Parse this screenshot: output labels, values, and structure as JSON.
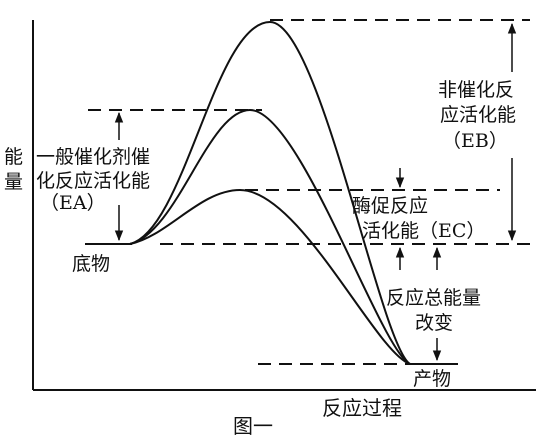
{
  "figure": {
    "caption": "图一",
    "x_axis_label": "反应过程",
    "y_axis_label_lines": [
      "能",
      "量"
    ]
  },
  "labels": {
    "reactant": "底物",
    "product": "产物",
    "general_catalyst": [
      "一般催化剂催",
      "化反应活化能",
      "（EA）"
    ],
    "non_catalyzed": [
      "非催化反",
      "应活化能",
      "（EB）"
    ],
    "enzyme_catalyzed": [
      "酶促反应",
      "活化能（EC）"
    ],
    "total_energy_change": [
      "反应总能量",
      "改变"
    ]
  },
  "colors": {
    "ink": "#111111",
    "background": "#ffffff"
  }
}
